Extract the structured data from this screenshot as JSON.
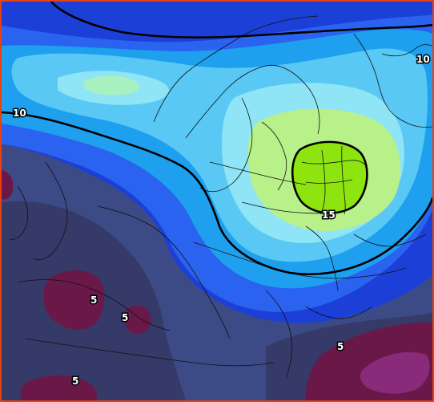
{
  "map": {
    "contour_labels": [
      {
        "id": "c10-west",
        "text": "10"
      },
      {
        "id": "c10-east",
        "text": "10"
      },
      {
        "id": "c15",
        "text": "15"
      },
      {
        "id": "c5-iberia",
        "text": "5"
      },
      {
        "id": "c5-morocco-east",
        "text": "5"
      },
      {
        "id": "c5-morocco-south",
        "text": "5"
      },
      {
        "id": "c5-turkey",
        "text": "5"
      }
    ],
    "colors": {
      "border": "#e8400f",
      "deep_blue": "#1c3fd8",
      "blue": "#2a63f0",
      "sky": "#1ea0ee",
      "light_sky": "#59c8f5",
      "pale_cyan": "#8fe4f5",
      "mint": "#a8f0c0",
      "pale_green": "#b8f08a",
      "lime": "#8ee40e",
      "slate": "#3c4a86",
      "dark_slate": "#353a68",
      "maroon": "#6a1848",
      "magenta": "#8a2a7a"
    }
  }
}
